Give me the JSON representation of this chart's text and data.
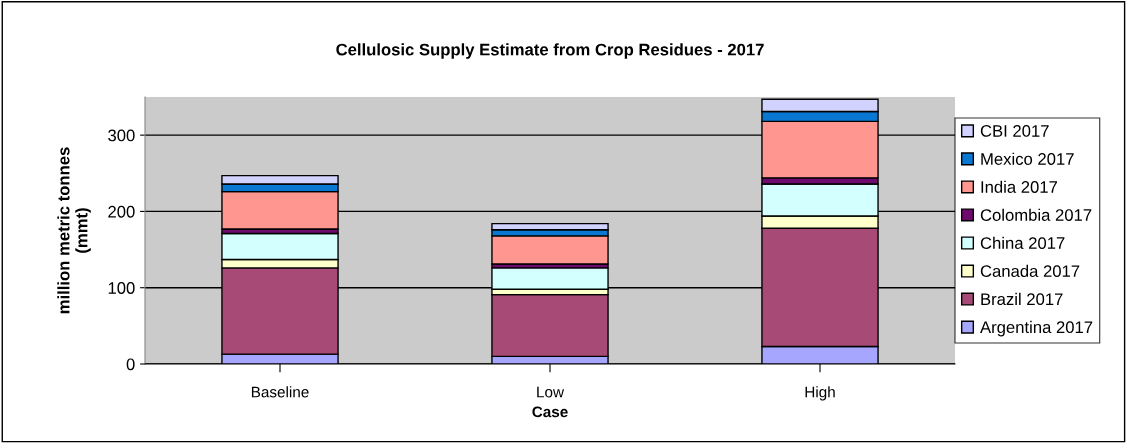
{
  "chart_data": {
    "type": "bar",
    "stacked": true,
    "title": "Cellulosic Supply Estimate from Crop Residues - 2017",
    "xlabel": "Case",
    "ylabel": "million metric tonnes\n(mmt)",
    "categories": [
      "Baseline",
      "Low",
      "High"
    ],
    "series": [
      {
        "name": "Argentina 2017",
        "color": "#a6a6ff",
        "values": [
          13,
          10,
          23
        ]
      },
      {
        "name": "Brazil 2017",
        "color": "#a84a76",
        "values": [
          113,
          81,
          155
        ]
      },
      {
        "name": "Canada 2017",
        "color": "#ffffcc",
        "values": [
          11,
          7,
          16
        ]
      },
      {
        "name": "China 2017",
        "color": "#d4ffff",
        "values": [
          34,
          28,
          42
        ]
      },
      {
        "name": "Colombia 2017",
        "color": "#6e0a6e",
        "values": [
          6,
          5,
          8
        ]
      },
      {
        "name": "India 2017",
        "color": "#ff9690",
        "values": [
          49,
          37,
          74
        ]
      },
      {
        "name": "Mexico 2017",
        "color": "#0a78d2",
        "values": [
          10,
          8,
          13
        ]
      },
      {
        "name": "CBI 2017",
        "color": "#d2d2ff",
        "values": [
          11,
          8,
          16
        ]
      }
    ],
    "ylim": [
      0,
      350
    ],
    "yticks": [
      0,
      100,
      200,
      300
    ],
    "grid": "y",
    "legend": "right"
  }
}
